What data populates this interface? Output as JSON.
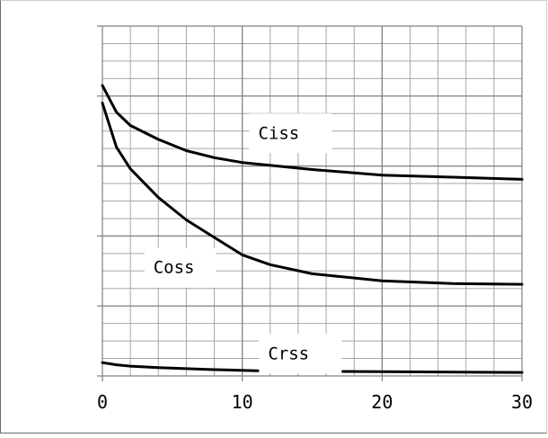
{
  "chart_data": {
    "type": "line",
    "title": "",
    "xlabel": "",
    "ylabel": "",
    "xlim": [
      0,
      30
    ],
    "ylim": [
      0,
      5
    ],
    "x_ticks": [
      0,
      10,
      20,
      30
    ],
    "x_tick_labels": [
      "0",
      "10",
      "20",
      "30"
    ],
    "grid": true,
    "y_axis_labeled": false,
    "series": [
      {
        "name": "Ciss",
        "x": [
          0,
          1,
          2,
          4,
          6,
          8,
          10,
          15,
          20,
          25,
          30
        ],
        "y": [
          4.15,
          3.77,
          3.58,
          3.38,
          3.22,
          3.12,
          3.05,
          2.95,
          2.87,
          2.84,
          2.81
        ]
      },
      {
        "name": "Coss",
        "x": [
          0,
          1,
          2,
          4,
          6,
          8,
          10,
          12,
          15,
          20,
          25,
          30
        ],
        "y": [
          3.9,
          3.27,
          2.96,
          2.55,
          2.23,
          1.98,
          1.73,
          1.59,
          1.46,
          1.36,
          1.32,
          1.31
        ]
      },
      {
        "name": "Crss",
        "x": [
          0,
          1,
          2,
          4,
          8,
          12,
          20,
          30
        ],
        "y": [
          0.19,
          0.16,
          0.14,
          0.12,
          0.09,
          0.07,
          0.06,
          0.05
        ]
      }
    ],
    "colors": {
      "line": "#000000",
      "grid": "#a6a6a6",
      "axis": "#808080",
      "tick_label": "#000000"
    }
  }
}
